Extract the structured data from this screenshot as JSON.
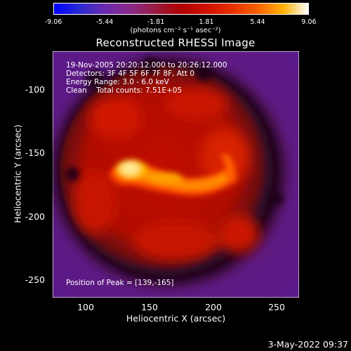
{
  "colorbar": {
    "ticks": [
      "-9.06",
      "-5.44",
      "-1.81",
      "1.81",
      "5.44",
      "9.06"
    ],
    "unit": "(photons cm⁻² s⁻¹ asec⁻²)"
  },
  "title": "Reconstructed RHESSI Image",
  "annotations": {
    "time": "19-Nov-2005 20:20:12.000 to 20:26:12.000",
    "detectors": "Detectors: 3F 4F 5F 6F 7F 8F, Att 0",
    "energy": "Energy Range: 3.0 - 6.0 keV",
    "clean": "Clean    Total counts: 7.51E+05",
    "peak": "Position of Peak = [139,-165]"
  },
  "axes": {
    "xlabel": "Heliocentric X (arcsec)",
    "ylabel": "Heliocentric Y (arcsec)",
    "xticks": [
      "100",
      "150",
      "200",
      "250"
    ],
    "yticks": [
      "-100",
      "-150",
      "-200",
      "-250"
    ]
  },
  "footer": {
    "date": "3-May-2022 09:37"
  }
}
